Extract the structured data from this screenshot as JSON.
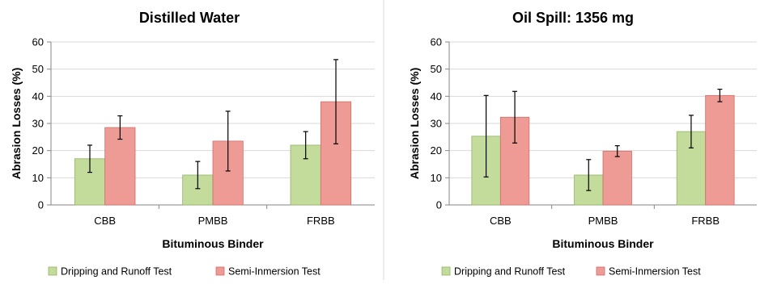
{
  "colors": {
    "series1_fill": "#c3db9b",
    "series1_stroke": "#93b267",
    "series2_fill": "#ee9a95",
    "series2_stroke": "#cf6f69",
    "axis": "#868686",
    "grid": "#d9d9d9",
    "error_bar": "#000000",
    "panel_divider": "#d9d9d9"
  },
  "chart_data": [
    {
      "type": "bar",
      "title": "Distilled Water",
      "xlabel": "Bituminous Binder",
      "ylabel": "Abrasion Losses (%)",
      "ylim": [
        0,
        60
      ],
      "yticks": [
        0,
        10,
        20,
        30,
        40,
        50,
        60
      ],
      "grid": true,
      "legend_position": "bottom",
      "categories": [
        "CBB",
        "PMBB",
        "FRBB"
      ],
      "series": [
        {
          "name": "Dripping and Runoff Test",
          "values": [
            17,
            11,
            22
          ],
          "error": [
            5,
            5,
            5
          ]
        },
        {
          "name": "Semi-Inmersion Test",
          "values": [
            28.5,
            23.5,
            38
          ],
          "error": [
            4.3,
            11,
            15.5
          ]
        }
      ]
    },
    {
      "type": "bar",
      "title": "Oil Spill: 1356 mg",
      "xlabel": "Bituminous Binder",
      "ylabel": "Abrasion Losses (%)",
      "ylim": [
        0,
        60
      ],
      "yticks": [
        0,
        10,
        20,
        30,
        40,
        50,
        60
      ],
      "grid": true,
      "legend_position": "bottom",
      "categories": [
        "CBB",
        "PMBB",
        "FRBB"
      ],
      "series": [
        {
          "name": "Dripping and Runoff Test",
          "values": [
            25.3,
            11,
            27
          ],
          "error": [
            15,
            5.7,
            6
          ]
        },
        {
          "name": "Semi-Inmersion Test",
          "values": [
            32.3,
            19.8,
            40.3
          ],
          "error": [
            9.5,
            2,
            2.3
          ]
        }
      ]
    }
  ]
}
